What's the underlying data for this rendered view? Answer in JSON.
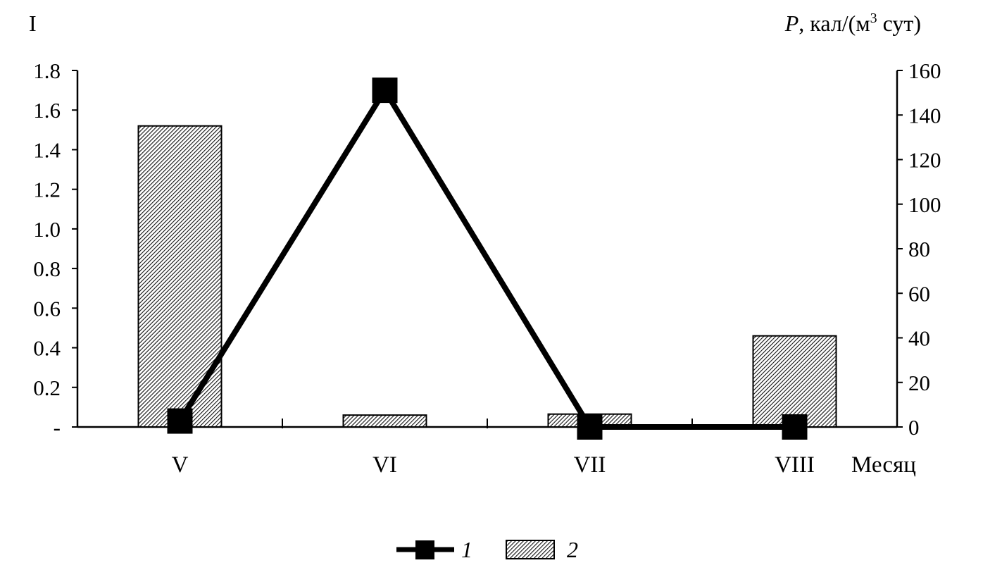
{
  "chart_data": {
    "type": "bar+line",
    "categories": [
      "V",
      "VI",
      "VII",
      "VIII"
    ],
    "x_axis_title": "Месяц",
    "left_axis": {
      "label": "I",
      "min": 0,
      "max": 1.8,
      "ticks": [
        "-",
        "0.2",
        "0.4",
        "0.6",
        "0.8",
        "1.0",
        "1.2",
        "1.4",
        "1.6",
        "1.8"
      ]
    },
    "right_axis": {
      "label_italic": "P",
      "label_rest": ", кал/(м",
      "label_sup": "3",
      "label_end": " сут)",
      "min": 0,
      "max": 160,
      "ticks": [
        "0",
        "20",
        "40",
        "60",
        "80",
        "100",
        "120",
        "140",
        "160"
      ]
    },
    "series": [
      {
        "name": "1",
        "type": "line",
        "axis": "left",
        "values": [
          0.03,
          1.7,
          0.0,
          0.0
        ],
        "color": "#000000"
      },
      {
        "name": "2",
        "type": "bar",
        "axis": "left",
        "pattern": "hatched",
        "values": [
          1.52,
          0.06,
          0.065,
          0.46
        ],
        "color": "#555555"
      }
    ],
    "legend_position": "bottom-center"
  }
}
